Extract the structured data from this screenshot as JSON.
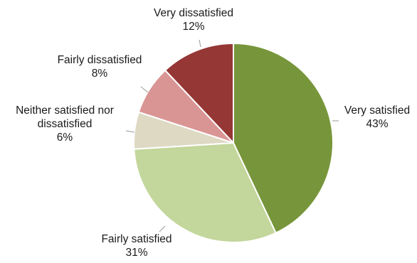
{
  "chart_data": {
    "type": "pie",
    "start_angle_deg": 0,
    "direction": "clockwise",
    "slices": [
      {
        "name": "Very satisfied",
        "value": 43,
        "label": [
          "Very satisfied",
          "43%"
        ],
        "color": "#77963b"
      },
      {
        "name": "Fairly satisfied",
        "value": 31,
        "label": [
          "Fairly satisfied",
          "31%"
        ],
        "color": "#c3d69b"
      },
      {
        "name": "Neither satisfied nor dissatisfied",
        "value": 6,
        "label": [
          "Neither satisfied nor",
          "dissatisfied",
          "6%"
        ],
        "color": "#ddd9c3"
      },
      {
        "name": "Fairly dissatisfied",
        "value": 8,
        "label": [
          "Fairly dissatisfied",
          "8%"
        ],
        "color": "#d99594"
      },
      {
        "name": "Very dissatisfied",
        "value": 12,
        "label": [
          "Very dissatisfied",
          "12%"
        ],
        "color": "#953735"
      }
    ],
    "data_labels": "outside",
    "legend": "none"
  }
}
